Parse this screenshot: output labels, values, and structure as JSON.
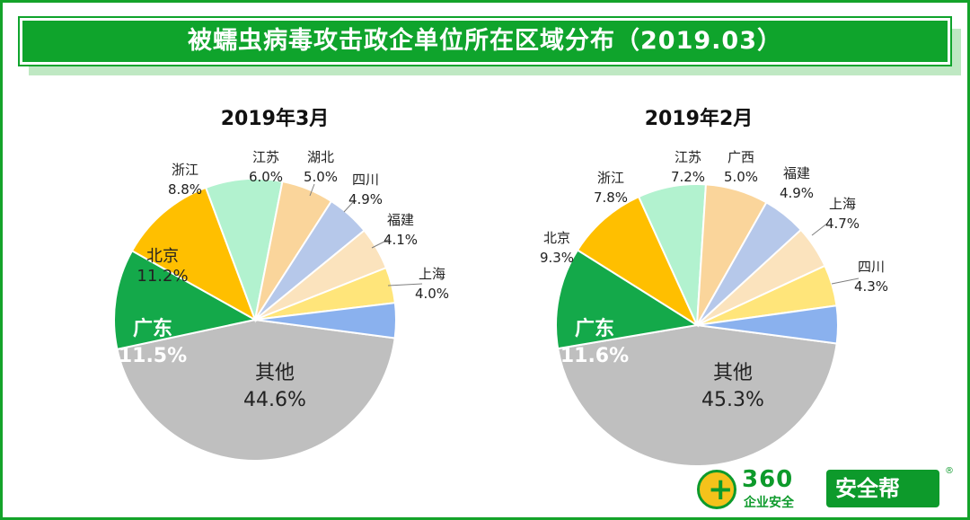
{
  "title": "被蠕虫病毒攻击政企单位所在区域分布（2019.03）",
  "logo": {
    "num": "360",
    "sub": "企业安全",
    "brand": "安全帮",
    "reg": "®"
  },
  "chart_data": [
    {
      "type": "pie",
      "title": "2019年3月",
      "slices": [
        {
          "label": "其他",
          "value": 44.6,
          "text": "44.6%",
          "color": "#bfbfbf"
        },
        {
          "label": "广东",
          "value": 11.5,
          "text": "11.5%",
          "color": "#14a94a"
        },
        {
          "label": "北京",
          "value": 11.2,
          "text": "11.2%",
          "color": "#ffbf00"
        },
        {
          "label": "浙江",
          "value": 8.8,
          "text": "8.8%",
          "color": "#b2f2cf"
        },
        {
          "label": "江苏",
          "value": 6.0,
          "text": "6.0%",
          "color": "#fad59b"
        },
        {
          "label": "湖北",
          "value": 5.0,
          "text": "5.0%",
          "color": "#b6c8ea"
        },
        {
          "label": "四川",
          "value": 4.9,
          "text": "4.9%",
          "color": "#fbe3bd"
        },
        {
          "label": "福建",
          "value": 4.1,
          "text": "4.1%",
          "color": "#ffe57a"
        },
        {
          "label": "上海",
          "value": 4.0,
          "text": "4.0%",
          "color": "#8ab1ee"
        }
      ]
    },
    {
      "type": "pie",
      "title": "2019年2月",
      "slices": [
        {
          "label": "其他",
          "value": 45.3,
          "text": "45.3%",
          "color": "#bfbfbf"
        },
        {
          "label": "广东",
          "value": 11.6,
          "text": "11.6%",
          "color": "#14a94a"
        },
        {
          "label": "北京",
          "value": 9.3,
          "text": "9.3%",
          "color": "#ffbf00"
        },
        {
          "label": "浙江",
          "value": 7.8,
          "text": "7.8%",
          "color": "#b2f2cf"
        },
        {
          "label": "江苏",
          "value": 7.2,
          "text": "7.2%",
          "color": "#fad59b"
        },
        {
          "label": "广西",
          "value": 5.0,
          "text": "5.0%",
          "color": "#b6c8ea"
        },
        {
          "label": "福建",
          "value": 4.9,
          "text": "4.9%",
          "color": "#fbe3bd"
        },
        {
          "label": "上海",
          "value": 4.7,
          "text": "4.7%",
          "color": "#ffe57a"
        },
        {
          "label": "四川",
          "value": 4.3,
          "text": "4.3%",
          "color": "#8ab1ee"
        }
      ]
    }
  ]
}
